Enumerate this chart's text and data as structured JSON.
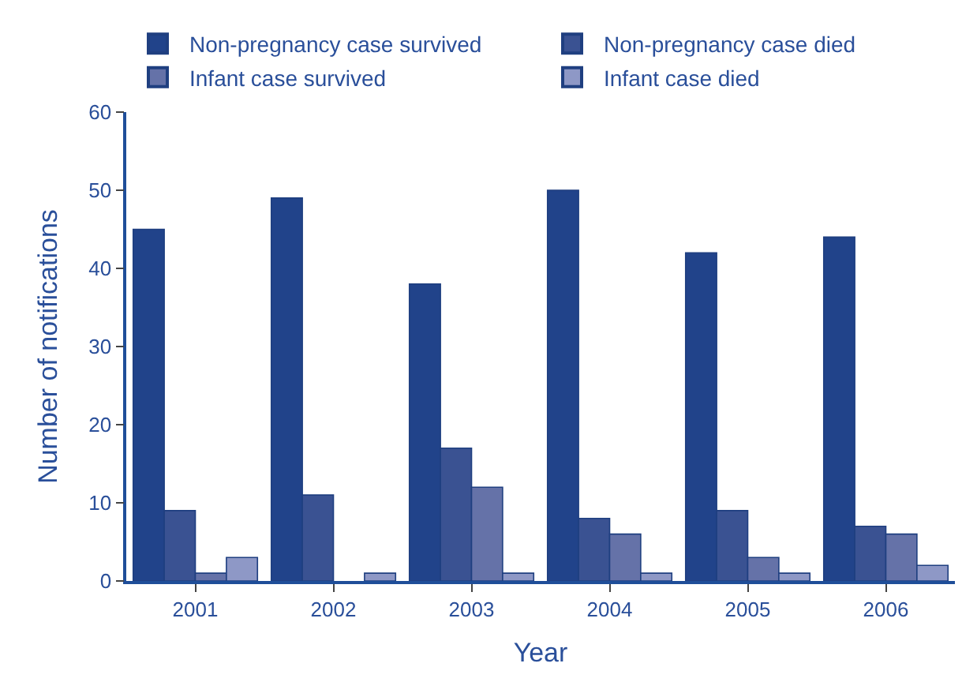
{
  "chart_data": {
    "type": "bar",
    "xlabel": "Year",
    "ylabel": "Number of notifications",
    "categories": [
      "2001",
      "2002",
      "2003",
      "2004",
      "2005",
      "2006"
    ],
    "series": [
      {
        "name": "Non-pregnancy case survived",
        "color": "#21438a",
        "values": [
          45,
          49,
          38,
          50,
          42,
          44
        ]
      },
      {
        "name": "Non-pregnancy case died",
        "color": "#3a5292",
        "values": [
          9,
          11,
          17,
          8,
          9,
          7
        ]
      },
      {
        "name": "Infant case survived",
        "color": "#6572a8",
        "values": [
          1,
          0,
          12,
          6,
          3,
          6
        ]
      },
      {
        "name": "Infant case died",
        "color": "#8e98c6",
        "values": [
          3,
          1,
          1,
          1,
          1,
          2
        ]
      }
    ],
    "ylim": [
      0,
      60
    ],
    "yticks": [
      0,
      10,
      20,
      30,
      40,
      50,
      60
    ],
    "legend": "top"
  }
}
